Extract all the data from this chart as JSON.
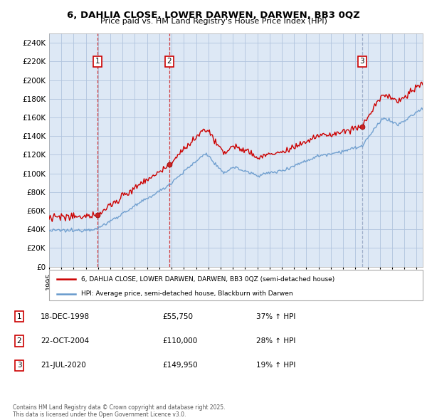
{
  "title": "6, DAHLIA CLOSE, LOWER DARWEN, DARWEN, BB3 0QZ",
  "subtitle": "Price paid vs. HM Land Registry's House Price Index (HPI)",
  "xlim_start": 1995.0,
  "xlim_end": 2025.5,
  "ylim_min": 0,
  "ylim_max": 250000,
  "yticks": [
    0,
    20000,
    40000,
    60000,
    80000,
    100000,
    120000,
    140000,
    160000,
    180000,
    200000,
    220000,
    240000
  ],
  "ytick_labels": [
    "£0",
    "£20K",
    "£40K",
    "£60K",
    "£80K",
    "£100K",
    "£120K",
    "£140K",
    "£160K",
    "£180K",
    "£200K",
    "£220K",
    "£240K"
  ],
  "sale_dates": [
    1998.96,
    2004.81,
    2020.55
  ],
  "sale_prices": [
    55750,
    110000,
    149950
  ],
  "sale_labels": [
    "1",
    "2",
    "3"
  ],
  "legend_red": "6, DAHLIA CLOSE, LOWER DARWEN, DARWEN, BB3 0QZ (semi-detached house)",
  "legend_blue": "HPI: Average price, semi-detached house, Blackburn with Darwen",
  "table_data": [
    [
      "1",
      "18-DEC-1998",
      "£55,750",
      "37% ↑ HPI"
    ],
    [
      "2",
      "22-OCT-2004",
      "£110,000",
      "28% ↑ HPI"
    ],
    [
      "3",
      "21-JUL-2020",
      "£149,950",
      "19% ↑ HPI"
    ]
  ],
  "footer": "Contains HM Land Registry data © Crown copyright and database right 2025.\nThis data is licensed under the Open Government Licence v3.0.",
  "bg_color": "#ffffff",
  "chart_bg_color": "#dde8f5",
  "grid_color": "#b0c4de",
  "red_color": "#cc0000",
  "blue_color": "#6699cc",
  "vline1_color": "#cc0000",
  "vline2_color": "#cc0000",
  "vline3_color": "#8899bb"
}
